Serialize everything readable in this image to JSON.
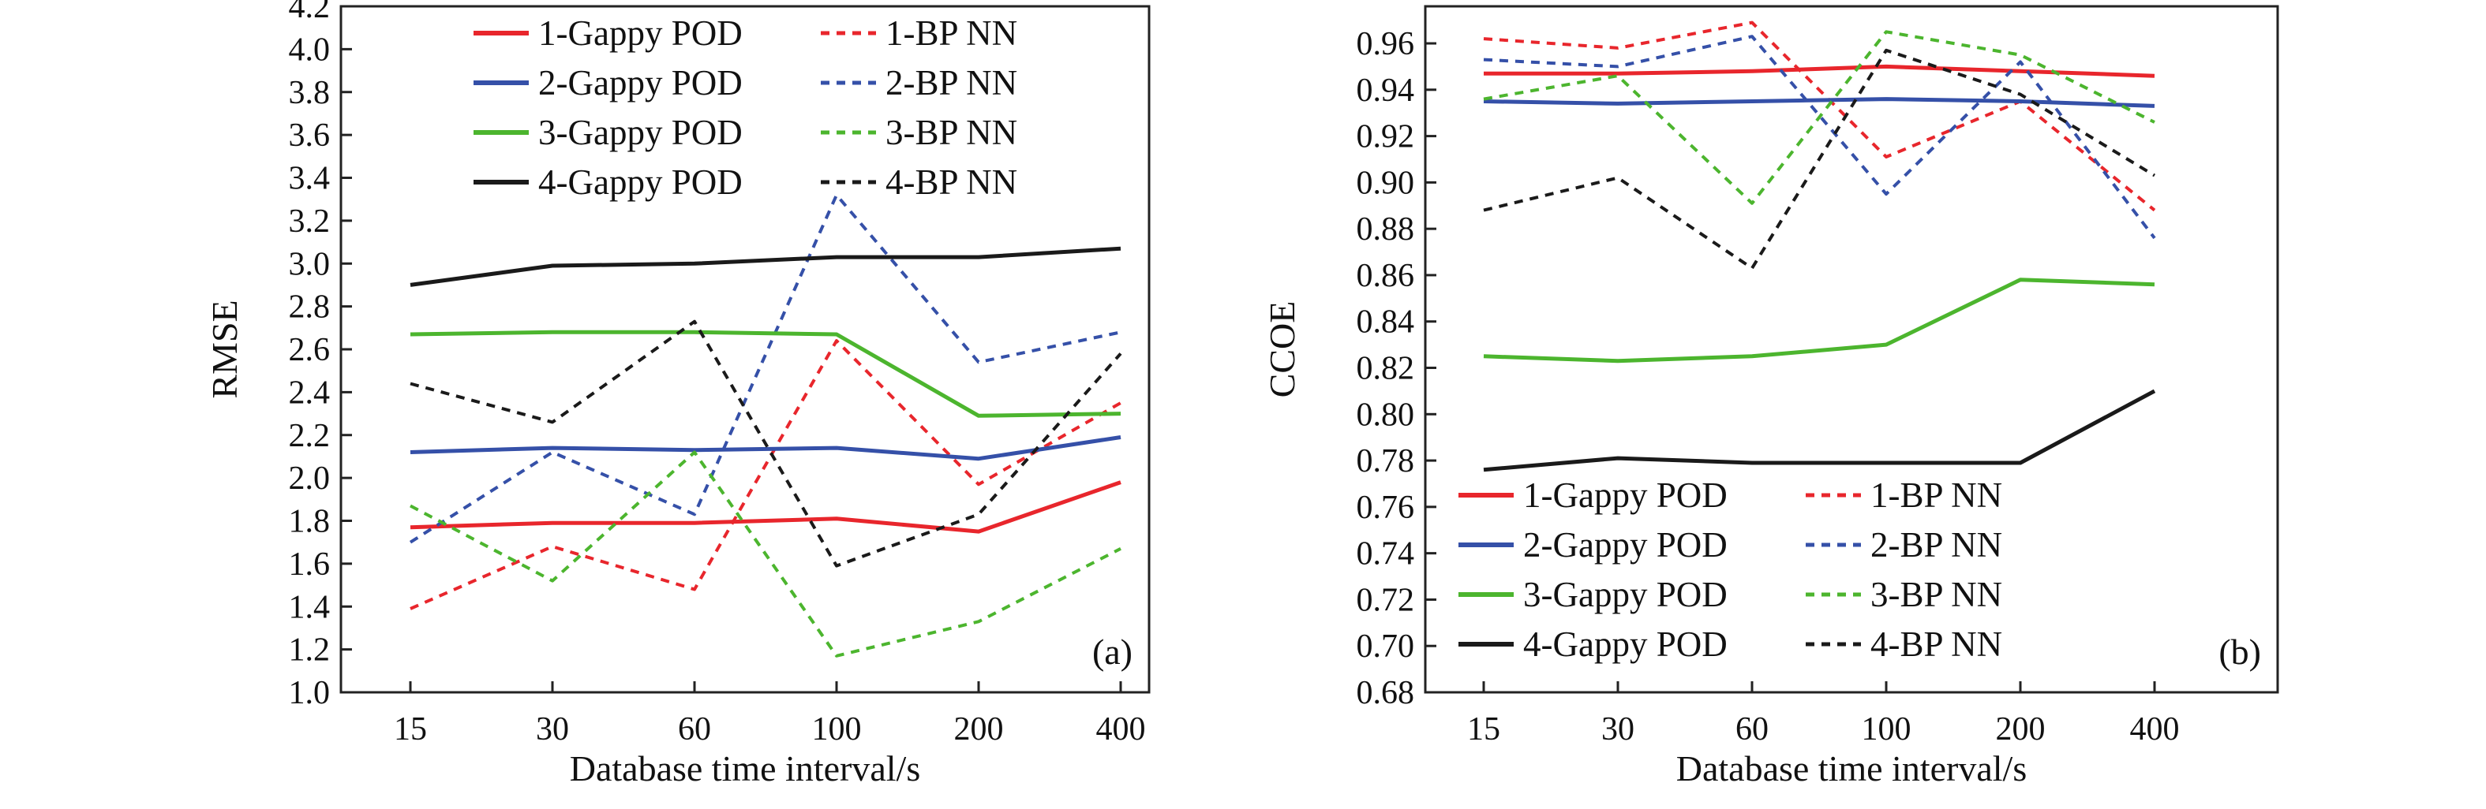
{
  "chart_data": [
    {
      "type": "line",
      "panel_label": "(a)",
      "xlabel": "Database time interval/s",
      "ylabel": "RMSE",
      "categories": [
        "15",
        "30",
        "60",
        "100",
        "200",
        "400"
      ],
      "ylim": [
        1.0,
        4.2
      ],
      "yticks": [
        "1.0",
        "1.2",
        "1.4",
        "1.6",
        "1.8",
        "2.0",
        "2.2",
        "2.4",
        "2.6",
        "2.8",
        "3.0",
        "3.2",
        "3.4",
        "3.6",
        "3.8",
        "4.0",
        "4.2"
      ],
      "grid": false,
      "legend_position": "top",
      "series": [
        {
          "name": "1-Gappy POD",
          "color": "#e8262c",
          "style": "solid",
          "values": [
            1.77,
            1.79,
            1.79,
            1.81,
            1.75,
            1.98
          ]
        },
        {
          "name": "1-BP NN",
          "color": "#e8262c",
          "style": "dashed",
          "values": [
            1.39,
            1.68,
            1.48,
            2.64,
            1.97,
            2.35
          ]
        },
        {
          "name": "2-Gappy POD",
          "color": "#3550a8",
          "style": "solid",
          "values": [
            2.12,
            2.14,
            2.13,
            2.14,
            2.09,
            2.19
          ]
        },
        {
          "name": "2-BP NN",
          "color": "#3550a8",
          "style": "dashed",
          "values": [
            1.7,
            2.12,
            1.83,
            3.32,
            2.54,
            2.68
          ]
        },
        {
          "name": "3-Gappy POD",
          "color": "#4cb52e",
          "style": "solid",
          "values": [
            2.67,
            2.68,
            2.68,
            2.67,
            2.29,
            2.3
          ]
        },
        {
          "name": "3-BP NN",
          "color": "#4cb52e",
          "style": "dashed",
          "values": [
            1.87,
            1.52,
            2.12,
            1.17,
            1.33,
            1.67
          ]
        },
        {
          "name": "4-Gappy POD",
          "color": "#1a1a1a",
          "style": "solid",
          "values": [
            2.9,
            2.99,
            3.0,
            3.03,
            3.03,
            3.07
          ]
        },
        {
          "name": "4-BP NN",
          "color": "#1a1a1a",
          "style": "dashed",
          "values": [
            2.44,
            2.26,
            2.73,
            1.59,
            1.83,
            2.58
          ]
        }
      ]
    },
    {
      "type": "line",
      "panel_label": "(b)",
      "xlabel": "Database time interval/s",
      "ylabel": "CCOE",
      "categories": [
        "15",
        "30",
        "60",
        "100",
        "200",
        "400"
      ],
      "ylim": [
        0.68,
        0.976
      ],
      "yticks": [
        "0.68",
        "0.70",
        "0.72",
        "0.74",
        "0.76",
        "0.78",
        "0.80",
        "0.82",
        "0.84",
        "0.86",
        "0.88",
        "0.90",
        "0.92",
        "0.94",
        "0.96"
      ],
      "grid": false,
      "legend_position": "bottom-left",
      "series": [
        {
          "name": "1-Gappy POD",
          "color": "#e8262c",
          "style": "solid",
          "values": [
            0.947,
            0.947,
            0.948,
            0.95,
            0.948,
            0.946
          ]
        },
        {
          "name": "1-BP NN",
          "color": "#e8262c",
          "style": "dashed",
          "values": [
            0.962,
            0.958,
            0.969,
            0.911,
            0.935,
            0.888
          ]
        },
        {
          "name": "2-Gappy POD",
          "color": "#3550a8",
          "style": "solid",
          "values": [
            0.935,
            0.934,
            0.935,
            0.936,
            0.935,
            0.933
          ]
        },
        {
          "name": "2-BP NN",
          "color": "#3550a8",
          "style": "dashed",
          "values": [
            0.953,
            0.95,
            0.963,
            0.895,
            0.952,
            0.876
          ]
        },
        {
          "name": "3-Gappy POD",
          "color": "#4cb52e",
          "style": "solid",
          "values": [
            0.825,
            0.823,
            0.825,
            0.83,
            0.858,
            0.856
          ]
        },
        {
          "name": "3-BP NN",
          "color": "#4cb52e",
          "style": "dashed",
          "values": [
            0.936,
            0.946,
            0.891,
            0.965,
            0.955,
            0.926
          ]
        },
        {
          "name": "4-Gappy POD",
          "color": "#1a1a1a",
          "style": "solid",
          "values": [
            0.776,
            0.781,
            0.779,
            0.779,
            0.779,
            0.81
          ]
        },
        {
          "name": "4-BP NN",
          "color": "#1a1a1a",
          "style": "dashed",
          "values": [
            0.888,
            0.902,
            0.863,
            0.957,
            0.938,
            0.903
          ]
        }
      ]
    }
  ]
}
